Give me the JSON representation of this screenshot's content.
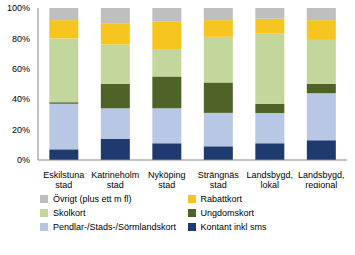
{
  "chart_data": {
    "type": "bar",
    "stacked": true,
    "grid": false,
    "categories": [
      "Eskilstuna stad",
      "Katrineholm stad",
      "Nyköping stad",
      "Strängnäs stad",
      "Landsbygd, lokal",
      "Landsbygd, regional"
    ],
    "series": [
      {
        "name": "Kontant inkl sms",
        "color": "#1f3a6e",
        "values": [
          7,
          14,
          11,
          9,
          11,
          13
        ]
      },
      {
        "name": "Pendlar-/Stads-/Sörmlandskort",
        "color": "#b7c7e4",
        "values": [
          30,
          20,
          23,
          22,
          20,
          31
        ]
      },
      {
        "name": "Ungdomskort",
        "color": "#4f6228",
        "values": [
          1,
          16,
          21,
          20,
          6,
          6
        ]
      },
      {
        "name": "Skolkort",
        "color": "#c3d69b",
        "values": [
          42,
          26,
          18,
          30,
          46,
          29
        ]
      },
      {
        "name": "Rabattkort",
        "color": "#f7c520",
        "values": [
          12,
          14,
          18,
          11,
          10,
          13
        ]
      },
      {
        "name": "Övrigt (plus ett m fl)",
        "color": "#bfbfbf",
        "values": [
          8,
          10,
          9,
          8,
          7,
          8
        ]
      }
    ],
    "ylim": [
      0,
      100
    ],
    "yticks": [
      {
        "value": 0,
        "label": "0%"
      },
      {
        "value": 20,
        "label": "20%"
      },
      {
        "value": 40,
        "label": "40%"
      },
      {
        "value": 60,
        "label": "60%"
      },
      {
        "value": 80,
        "label": "80%"
      },
      {
        "value": 100,
        "label": "100%"
      }
    ],
    "legend": "bottom"
  }
}
